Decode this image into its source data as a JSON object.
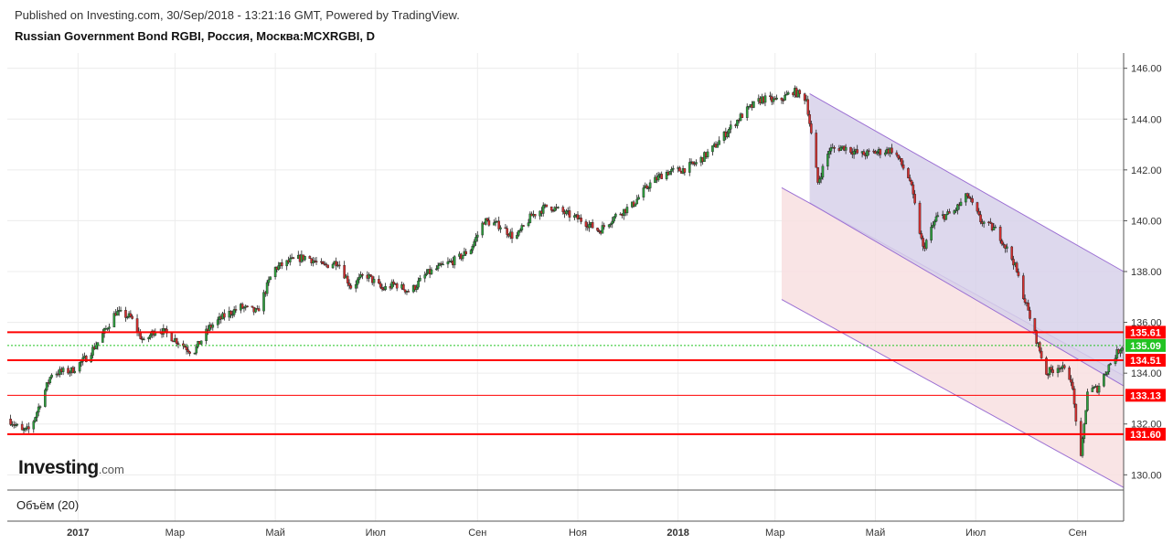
{
  "header": {
    "published": "Published on Investing.com, 30/Sep/2018 - 13:21:16 GMT, Powered by TradingView.",
    "title": "Russian Government Bond RGBI, Россия, Москва:MCXRGBI, D"
  },
  "brand": {
    "main": "Investing",
    "sub": ".com"
  },
  "volume_panel": {
    "label": "Объём (20)"
  },
  "colors": {
    "up": "#2e9e3e",
    "down": "#d32f2f",
    "wick": "#222222",
    "level_line": "#ff0000",
    "last_price": "#22c322",
    "channel_upper_fill": "#d7d1ea",
    "channel_lower_fill": "#f8dfe0",
    "channel_line": "#9b6fd3"
  },
  "chart_data": {
    "type": "candlestick",
    "title": "Russian Government Bond RGBI, Россия, Москва:MCXRGBI, D",
    "ylim": [
      129.4,
      146.6
    ],
    "x_ticks": [
      {
        "date": "2017-01-01",
        "label": "2017",
        "bold": true
      },
      {
        "date": "2017-03-01",
        "label": "Мар"
      },
      {
        "date": "2017-05-01",
        "label": "Май"
      },
      {
        "date": "2017-07-01",
        "label": "Июл"
      },
      {
        "date": "2017-09-01",
        "label": "Сен"
      },
      {
        "date": "2017-11-01",
        "label": "Ноя"
      },
      {
        "date": "2018-01-01",
        "label": "2018",
        "bold": true
      },
      {
        "date": "2018-03-01",
        "label": "Мар"
      },
      {
        "date": "2018-05-01",
        "label": "Май"
      },
      {
        "date": "2018-07-01",
        "label": "Июл"
      },
      {
        "date": "2018-09-01",
        "label": "Сен"
      }
    ],
    "y_ticks": [
      130.0,
      132.0,
      134.0,
      136.0,
      138.0,
      140.0,
      142.0,
      144.0,
      146.0
    ],
    "y_tick_labels": [
      "130.00",
      "132.00",
      "134.00",
      "136.00",
      "138.00",
      "140.00",
      "142.00",
      "144.00",
      "146.00"
    ],
    "x_range": [
      "2016-11-19",
      "2018-09-29"
    ],
    "price_path": [
      [
        "2016-11-20",
        132.2
      ],
      [
        "2016-11-28",
        131.7
      ],
      [
        "2016-12-03",
        131.8
      ],
      [
        "2016-12-10",
        133.0
      ],
      [
        "2016-12-16",
        134.0
      ],
      [
        "2016-12-28",
        134.1
      ],
      [
        "2017-01-06",
        134.6
      ],
      [
        "2017-01-14",
        135.3
      ],
      [
        "2017-01-24",
        136.4
      ],
      [
        "2017-02-02",
        136.2
      ],
      [
        "2017-02-10",
        135.2
      ],
      [
        "2017-02-18",
        135.8
      ],
      [
        "2017-02-25",
        135.5
      ],
      [
        "2017-03-04",
        135.2
      ],
      [
        "2017-03-12",
        134.8
      ],
      [
        "2017-03-22",
        135.8
      ],
      [
        "2017-04-01",
        136.3
      ],
      [
        "2017-04-10",
        136.6
      ],
      [
        "2017-04-20",
        136.4
      ],
      [
        "2017-04-30",
        138.1
      ],
      [
        "2017-05-10",
        138.4
      ],
      [
        "2017-05-20",
        138.6
      ],
      [
        "2017-05-30",
        138.2
      ],
      [
        "2017-06-08",
        138.4
      ],
      [
        "2017-06-16",
        137.4
      ],
      [
        "2017-06-25",
        137.9
      ],
      [
        "2017-07-05",
        137.3
      ],
      [
        "2017-07-13",
        137.5
      ],
      [
        "2017-07-22",
        137.2
      ],
      [
        "2017-08-01",
        137.9
      ],
      [
        "2017-08-10",
        138.2
      ],
      [
        "2017-08-20",
        138.5
      ],
      [
        "2017-08-28",
        138.9
      ],
      [
        "2017-09-05",
        140.0
      ],
      [
        "2017-09-15",
        139.8
      ],
      [
        "2017-09-24",
        139.3
      ],
      [
        "2017-10-04",
        140.2
      ],
      [
        "2017-10-14",
        140.6
      ],
      [
        "2017-10-24",
        140.3
      ],
      [
        "2017-11-04",
        140.0
      ],
      [
        "2017-11-14",
        139.6
      ],
      [
        "2017-11-24",
        140.2
      ],
      [
        "2017-12-04",
        140.6
      ],
      [
        "2017-12-14",
        141.4
      ],
      [
        "2017-12-24",
        141.9
      ],
      [
        "2018-01-03",
        142.0
      ],
      [
        "2018-01-13",
        142.3
      ],
      [
        "2018-01-23",
        142.9
      ],
      [
        "2018-02-01",
        143.6
      ],
      [
        "2018-02-11",
        144.3
      ],
      [
        "2018-02-21",
        144.8
      ],
      [
        "2018-03-03",
        144.7
      ],
      [
        "2018-03-12",
        145.1
      ],
      [
        "2018-03-20",
        144.8
      ],
      [
        "2018-03-27",
        141.5
      ],
      [
        "2018-04-03",
        142.8
      ],
      [
        "2018-04-12",
        142.9
      ],
      [
        "2018-04-22",
        142.6
      ],
      [
        "2018-05-02",
        142.7
      ],
      [
        "2018-05-12",
        142.8
      ],
      [
        "2018-05-22",
        141.6
      ],
      [
        "2018-05-30",
        138.9
      ],
      [
        "2018-06-07",
        140.1
      ],
      [
        "2018-06-17",
        140.3
      ],
      [
        "2018-06-26",
        141.0
      ],
      [
        "2018-07-04",
        140.0
      ],
      [
        "2018-07-14",
        139.6
      ],
      [
        "2018-07-24",
        138.4
      ],
      [
        "2018-08-03",
        136.2
      ],
      [
        "2018-08-13",
        134.0
      ],
      [
        "2018-08-21",
        134.3
      ],
      [
        "2018-08-28",
        133.8
      ],
      [
        "2018-09-03",
        130.6
      ],
      [
        "2018-09-07",
        133.3
      ],
      [
        "2018-09-13",
        133.4
      ],
      [
        "2018-09-20",
        134.3
      ],
      [
        "2018-09-28",
        135.09
      ]
    ],
    "levels": [
      {
        "value": 135.61,
        "label": "135.61",
        "bold": true
      },
      {
        "value": 134.51,
        "label": "134.51",
        "bold": true
      },
      {
        "value": 133.13,
        "label": "133.13",
        "bold": false
      },
      {
        "value": 131.6,
        "label": "131.60",
        "bold": true
      }
    ],
    "last_price": {
      "value": 135.09,
      "label": "135.09"
    },
    "upper_channel": {
      "start": [
        "2018-03-22",
        145.0
      ],
      "end": [
        "2018-09-29",
        138.0
      ],
      "lower_start": [
        "2018-03-22",
        140.7
      ],
      "lower_end": [
        "2018-09-29",
        133.5
      ]
    },
    "lower_channel": {
      "start": [
        "2018-03-05",
        141.3
      ],
      "end": [
        "2018-09-29",
        133.9
      ],
      "lower_start": [
        "2018-03-05",
        136.9
      ],
      "lower_end": [
        "2018-09-29",
        129.5
      ]
    }
  }
}
